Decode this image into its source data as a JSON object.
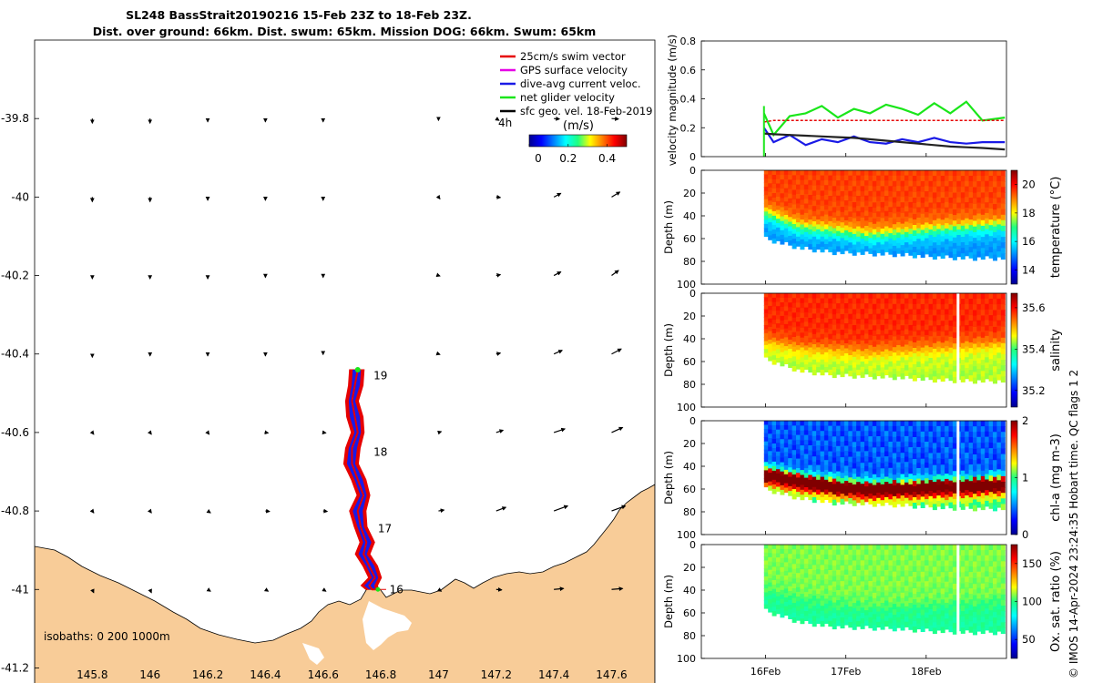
{
  "figure": {
    "title_line1": "SL248 BassStrait20190216 15-Feb 23Z to 18-Feb 23Z.",
    "title_line2": "Dist. over ground: 66km. Dist. swum: 65km. Mission DOG: 66km. Swum: 65km",
    "credit": "© IMOS 14-Apr-2024 23:24:35 Hobart time. QC flags 1  2",
    "colors": {
      "land": "#f8cc98",
      "swim_vector": "#e60000",
      "gps_velocity": "#e600e6",
      "dive_avg": "#1a1ae6",
      "net_glider": "#1ae61a",
      "sfc_geo": "#000000"
    }
  },
  "map": {
    "legend": [
      {
        "label": "25cm/s swim vector",
        "color": "#e60000"
      },
      {
        "label": "GPS surface velocity",
        "color": "#e600e6"
      },
      {
        "label": "dive-avg current veloc.",
        "color": "#1a1ae6"
      },
      {
        "label": "net glider velocity",
        "color": "#1ae61a"
      },
      {
        "label": "sfc geo. vel. 18-Feb-2019",
        "color": "#000000"
      }
    ],
    "interval_label": "4h",
    "colorbar_unit": "(m/s)",
    "colorbar_ticks": [
      "0",
      "0.2",
      "0.4"
    ],
    "isobaths_label": "isobaths: 0   200  1000m",
    "day_labels": [
      {
        "text": "19",
        "lon": 146.775,
        "lat": -40.455
      },
      {
        "text": "18",
        "lon": 146.775,
        "lat": -40.65
      },
      {
        "text": "17",
        "lon": 146.79,
        "lat": -40.845
      },
      {
        "text": "16",
        "lon": 146.83,
        "lat": -41.0
      }
    ]
  },
  "chart_data": [
    {
      "type": "map",
      "xlim": [
        145.6,
        147.75
      ],
      "ylim": [
        -41.25,
        -39.6
      ],
      "x_ticks": [
        "145.8",
        "146",
        "146.2",
        "146.4",
        "146.6",
        "146.8",
        "147",
        "147.2",
        "147.4",
        "147.6"
      ],
      "y_ticks": [
        "-39.8",
        "-40",
        "-40.2",
        "-40.4",
        "-40.6",
        "-40.8",
        "-41",
        "-41.2"
      ],
      "track_lon": [
        146.72,
        146.71,
        146.7,
        146.71,
        146.72,
        146.7,
        146.7,
        146.72,
        146.74,
        146.72,
        146.73,
        146.75,
        146.74,
        146.76,
        146.78,
        146.76,
        146.77,
        146.79
      ],
      "track_lat": [
        -40.44,
        -40.48,
        -40.52,
        -40.56,
        -40.6,
        -40.64,
        -40.68,
        -40.72,
        -40.76,
        -40.8,
        -40.84,
        -40.88,
        -40.91,
        -40.94,
        -40.97,
        -40.99,
        -41.0,
        -41.0
      ],
      "vector_lon": [
        145.8,
        146.0,
        146.2,
        146.4,
        146.6,
        146.8,
        147.0,
        147.2,
        147.4,
        147.6
      ],
      "vector_lat": [
        -39.8,
        -40.0,
        -40.2,
        -40.4,
        -40.6,
        -40.8,
        -41.0
      ],
      "vectors_u": [
        [
          0.0,
          0.0,
          0.0,
          0.0,
          0.0,
          0.0,
          0.0,
          0.02,
          0.04,
          0.05
        ],
        [
          0.0,
          0.0,
          0.0,
          0.0,
          0.0,
          0.0,
          0.01,
          0.03,
          0.05,
          0.06
        ],
        [
          0.0,
          0.0,
          0.0,
          0.0,
          0.0,
          0.0,
          0.01,
          0.03,
          0.05,
          0.05
        ],
        [
          0.0,
          0.0,
          0.0,
          0.0,
          0.0,
          0.0,
          0.01,
          0.03,
          0.06,
          0.07
        ],
        [
          0.01,
          0.01,
          0.01,
          0.02,
          0.02,
          0.0,
          0.02,
          0.05,
          0.08,
          0.08
        ],
        [
          0.01,
          0.01,
          0.02,
          0.03,
          0.03,
          0.0,
          0.04,
          0.07,
          0.1,
          0.1
        ],
        [
          0.01,
          0.01,
          0.02,
          0.02,
          0.02,
          0.0,
          0.02,
          0.04,
          0.07,
          0.08
        ]
      ],
      "vectors_v": [
        [
          -0.02,
          -0.02,
          -0.01,
          -0.01,
          -0.01,
          0.0,
          0.0,
          0.0,
          0.01,
          0.01
        ],
        [
          -0.02,
          -0.02,
          -0.01,
          -0.01,
          -0.01,
          0.0,
          0.0,
          0.01,
          0.04,
          0.05
        ],
        [
          -0.01,
          -0.01,
          -0.01,
          0.0,
          0.0,
          0.0,
          0.01,
          0.02,
          0.04,
          0.05
        ],
        [
          -0.01,
          0.0,
          0.0,
          0.0,
          0.01,
          0.0,
          0.01,
          0.02,
          0.04,
          0.05
        ],
        [
          0.0,
          0.0,
          0.0,
          0.01,
          0.01,
          0.0,
          0.02,
          0.03,
          0.04,
          0.05
        ],
        [
          0.0,
          0.0,
          0.0,
          0.01,
          0.01,
          0.0,
          0.02,
          0.04,
          0.05,
          0.05
        ],
        [
          -0.01,
          -0.01,
          0.0,
          0.0,
          0.0,
          0.0,
          0.0,
          0.01,
          0.02,
          0.02
        ]
      ]
    },
    {
      "type": "line",
      "ylabel": "velocity magnitude (m/s)",
      "ylim": [
        0,
        0.8
      ],
      "y_ticks": [
        "0",
        "0.2",
        "0.4",
        "0.6",
        "0.8"
      ],
      "x_ticks": [
        "16Feb",
        "17Feb",
        "18Feb"
      ],
      "x": [
        15.98,
        16.1,
        16.3,
        16.5,
        16.7,
        16.9,
        17.1,
        17.3,
        17.5,
        17.7,
        17.9,
        18.1,
        18.3,
        18.5,
        18.7,
        18.98
      ],
      "series": [
        {
          "color": "#1ae61a",
          "values": [
            0.3,
            0.15,
            0.28,
            0.3,
            0.35,
            0.27,
            0.33,
            0.3,
            0.36,
            0.33,
            0.29,
            0.37,
            0.3,
            0.38,
            0.25,
            0.27
          ]
        },
        {
          "color": "#e60000",
          "values": [
            0.24,
            0.25,
            0.25,
            0.25,
            0.25,
            0.25,
            0.25,
            0.25,
            0.25,
            0.25,
            0.25,
            0.25,
            0.25,
            0.25,
            0.25,
            0.25
          ]
        },
        {
          "color": "#1a1ae6",
          "values": [
            0.2,
            0.1,
            0.15,
            0.08,
            0.12,
            0.1,
            0.14,
            0.1,
            0.09,
            0.12,
            0.1,
            0.13,
            0.1,
            0.09,
            0.1,
            0.1
          ]
        },
        {
          "color": "#222222",
          "values": [
            0.16,
            0.155,
            0.15,
            0.145,
            0.14,
            0.135,
            0.13,
            0.12,
            0.11,
            0.1,
            0.09,
            0.08,
            0.07,
            0.065,
            0.06,
            0.05
          ]
        }
      ]
    },
    {
      "type": "heatmap",
      "ylabel": "Depth (m)",
      "colorbar_label": "temperature (°C)",
      "colorbar_ticks": [
        "14",
        "16",
        "18",
        "20"
      ],
      "clim": [
        13,
        21
      ],
      "y_ticks": [
        "0",
        "20",
        "40",
        "60",
        "80",
        "100"
      ],
      "x_ticks": [
        "16Feb",
        "17Feb",
        "18Feb"
      ],
      "ylim": [
        100,
        0
      ],
      "surface_value": 19.5,
      "deep_value": 15.2,
      "interface_depth": [
        38,
        50,
        53,
        57,
        55,
        52,
        50,
        48
      ],
      "max_depth": [
        60,
        68,
        72,
        73,
        74,
        76,
        77,
        77
      ]
    },
    {
      "type": "heatmap",
      "ylabel": "Depth (m)",
      "colorbar_label": "salinity",
      "colorbar_ticks": [
        "35.2",
        "35.4",
        "35.6"
      ],
      "clim": [
        35.12,
        35.67
      ],
      "y_ticks": [
        "0",
        "20",
        "40",
        "60",
        "80",
        "100"
      ],
      "x_ticks": [
        "16Feb",
        "17Feb",
        "18Feb"
      ],
      "ylim": [
        100,
        0
      ],
      "surface_value": 35.58,
      "deep_value": 35.44,
      "interface_depth": [
        42,
        48,
        50,
        52,
        50,
        48,
        46,
        44
      ],
      "max_depth": [
        58,
        68,
        72,
        73,
        74,
        76,
        77,
        77
      ]
    },
    {
      "type": "heatmap",
      "ylabel": "Depth (m)",
      "colorbar_label": "chl-a (mg m-3)",
      "colorbar_ticks": [
        "0",
        "1",
        "2"
      ],
      "clim": [
        0,
        2
      ],
      "y_ticks": [
        "0",
        "20",
        "40",
        "60",
        "80",
        "100"
      ],
      "x_ticks": [
        "16Feb",
        "17Feb",
        "18Feb"
      ],
      "ylim": [
        100,
        0
      ],
      "surface_value": 0.3,
      "deep_value": 0.9,
      "interface_depth": [
        42,
        48,
        52,
        55,
        54,
        53,
        52,
        50
      ],
      "max_depth": [
        60,
        68,
        72,
        73,
        74,
        76,
        77,
        77
      ]
    },
    {
      "type": "heatmap",
      "ylabel": "Depth (m)",
      "colorbar_label": "Ox. sat. ratio (%)",
      "colorbar_ticks": [
        "50",
        "100",
        "150"
      ],
      "clim": [
        25,
        175
      ],
      "y_ticks": [
        "0",
        "20",
        "40",
        "60",
        "80",
        "100"
      ],
      "x_ticks": [
        "16Feb",
        "17Feb",
        "18Feb"
      ],
      "ylim": [
        100,
        0
      ],
      "surface_value": 108,
      "deep_value": 96,
      "interface_depth": [
        40,
        48,
        52,
        55,
        55,
        53,
        52,
        50
      ],
      "max_depth": [
        58,
        68,
        72,
        73,
        74,
        76,
        77,
        77
      ]
    }
  ]
}
